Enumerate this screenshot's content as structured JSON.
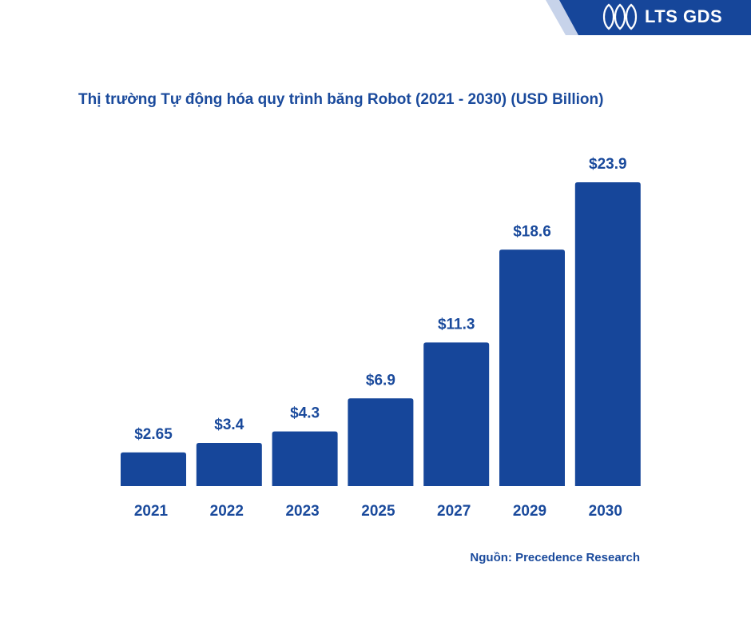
{
  "brand": {
    "name": "LTS GDS",
    "logo_icon": "lts-gds-logo-icon",
    "banner_color": "#16469a",
    "accent_color": "#c7d3ea"
  },
  "title": "Thị trường Tự động hóa quy trình băng Robot (2021 - 2030) (USD Billion)",
  "source": "Nguồn: Precedence Research",
  "chart_data": {
    "type": "bar",
    "title": "Thị trường Tự động hóa quy trình băng Robot (2021 - 2030) (USD Billion)",
    "categories": [
      "2021",
      "2022",
      "2023",
      "2025",
      "2027",
      "2029",
      "2030"
    ],
    "values": [
      2.65,
      3.4,
      4.3,
      6.9,
      11.3,
      18.6,
      23.9
    ],
    "value_labels": [
      "$2.65",
      "$3.4",
      "$4.3",
      "$6.9",
      "$11.3",
      "$18.6",
      "$23.9"
    ],
    "xlabel": "",
    "ylabel": "",
    "ylim": [
      0,
      23.9
    ],
    "grid": false,
    "legend": "none",
    "bar_color": "#16469a",
    "label_color": "#1a4a9c"
  }
}
